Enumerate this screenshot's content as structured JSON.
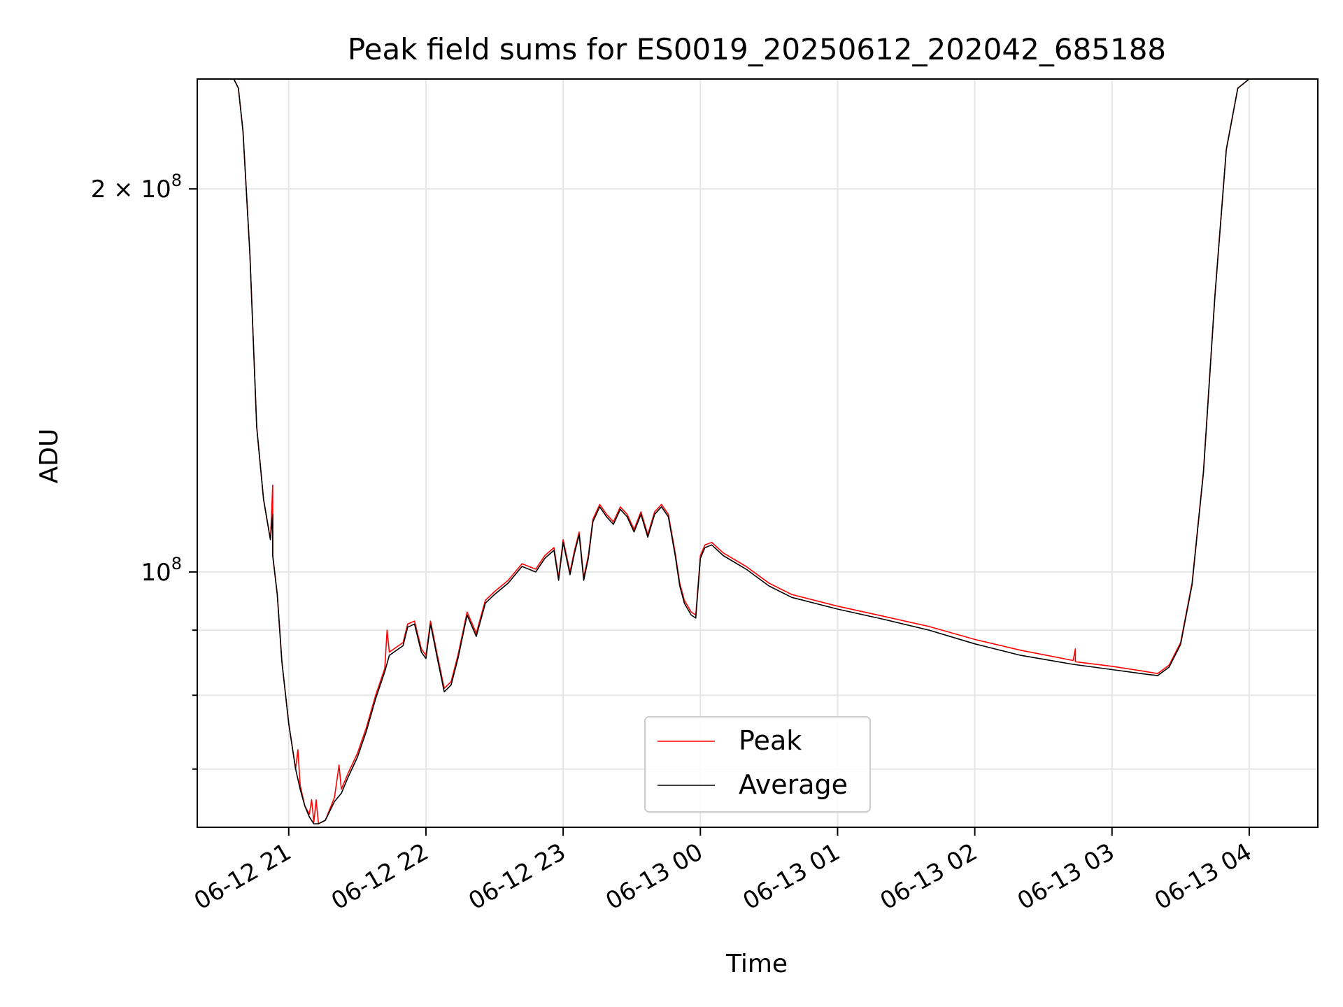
{
  "chart_data": {
    "type": "line",
    "title": "Peak field sums for ES0019_20250612_202042_685188",
    "xlabel": "Time",
    "ylabel": "ADU",
    "yscale": "log",
    "xlim": [
      "2025-06-12 20:20",
      "2025-06-13 04:30"
    ],
    "ylim": [
      63000000,
      244000000
    ],
    "grid": true,
    "legend_position": "lower center",
    "x_ticks": [
      {
        "value": "2025-06-12 21:00",
        "label": "06-12 21"
      },
      {
        "value": "2025-06-12 22:00",
        "label": "06-12 22"
      },
      {
        "value": "2025-06-12 23:00",
        "label": "06-12 23"
      },
      {
        "value": "2025-06-13 00:00",
        "label": "06-13 00"
      },
      {
        "value": "2025-06-13 01:00",
        "label": "06-13 01"
      },
      {
        "value": "2025-06-13 02:00",
        "label": "06-13 02"
      },
      {
        "value": "2025-06-13 03:00",
        "label": "06-13 03"
      },
      {
        "value": "2025-06-13 04:00",
        "label": "06-13 04"
      }
    ],
    "y_ticks_major": [
      {
        "value": 100000000,
        "base": "10",
        "exp": "8",
        "mult": ""
      },
      {
        "value": 200000000,
        "base": "10",
        "exp": "8",
        "mult": "2 × "
      }
    ],
    "y_ticks_minor": [
      70000000,
      80000000,
      90000000
    ],
    "series": [
      {
        "name": "Peak",
        "color": "#ff0000",
        "points": [
          [
            "2025-06-12 20:36",
            244000000
          ],
          [
            "2025-06-12 20:38",
            240000000
          ],
          [
            "2025-06-12 20:40",
            222000000
          ],
          [
            "2025-06-12 20:43",
            178000000
          ],
          [
            "2025-06-12 20:46",
            130000000
          ],
          [
            "2025-06-12 20:49",
            114000000
          ],
          [
            "2025-06-12 20:52",
            106000000
          ],
          [
            "2025-06-12 20:53",
            117000000
          ],
          [
            "2025-06-12 20:53",
            103000000
          ],
          [
            "2025-06-12 20:55",
            96000000
          ],
          [
            "2025-06-12 20:57",
            85000000
          ],
          [
            "2025-06-12 21:00",
            76000000
          ],
          [
            "2025-06-12 21:03",
            70000000
          ],
          [
            "2025-06-12 21:04",
            72500000
          ],
          [
            "2025-06-12 21:05",
            68000000
          ],
          [
            "2025-06-12 21:07",
            65500000
          ],
          [
            "2025-06-12 21:09",
            64500000
          ],
          [
            "2025-06-12 21:10",
            66200000
          ],
          [
            "2025-06-12 21:11",
            63600000
          ],
          [
            "2025-06-12 21:12",
            66200000
          ],
          [
            "2025-06-12 21:13",
            63400000
          ],
          [
            "2025-06-12 21:16",
            63800000
          ],
          [
            "2025-06-12 21:20",
            66500000
          ],
          [
            "2025-06-12 21:22",
            70500000
          ],
          [
            "2025-06-12 21:23",
            67500000
          ],
          [
            "2025-06-12 21:26",
            69500000
          ],
          [
            "2025-06-12 21:30",
            72000000
          ],
          [
            "2025-06-12 21:34",
            75500000
          ],
          [
            "2025-06-12 21:38",
            80000000
          ],
          [
            "2025-06-12 21:42",
            84000000
          ],
          [
            "2025-06-12 21:43",
            90000000
          ],
          [
            "2025-06-12 21:44",
            86500000
          ],
          [
            "2025-06-12 21:50",
            88000000
          ],
          [
            "2025-06-12 21:52",
            91000000
          ],
          [
            "2025-06-12 21:55",
            91500000
          ],
          [
            "2025-06-12 21:58",
            87000000
          ],
          [
            "2025-06-12 22:00",
            86000000
          ],
          [
            "2025-06-12 22:02",
            91500000
          ],
          [
            "2025-06-12 22:05",
            86000000
          ],
          [
            "2025-06-12 22:08",
            81000000
          ],
          [
            "2025-06-12 22:11",
            82000000
          ],
          [
            "2025-06-12 22:14",
            86000000
          ],
          [
            "2025-06-12 22:18",
            93000000
          ],
          [
            "2025-06-12 22:22",
            89500000
          ],
          [
            "2025-06-12 22:26",
            95000000
          ],
          [
            "2025-06-12 22:30",
            96500000
          ],
          [
            "2025-06-12 22:36",
            98500000
          ],
          [
            "2025-06-12 22:42",
            101500000
          ],
          [
            "2025-06-12 22:48",
            100500000
          ],
          [
            "2025-06-12 22:52",
            103000000
          ],
          [
            "2025-06-12 22:56",
            104500000
          ],
          [
            "2025-06-12 22:58",
            99000000
          ],
          [
            "2025-06-12 23:00",
            106000000
          ],
          [
            "2025-06-12 23:03",
            100000000
          ],
          [
            "2025-06-12 23:05",
            104000000
          ],
          [
            "2025-06-12 23:07",
            107500000
          ],
          [
            "2025-06-12 23:09",
            99000000
          ],
          [
            "2025-06-12 23:11",
            103000000
          ],
          [
            "2025-06-12 23:13",
            110000000
          ],
          [
            "2025-06-12 23:16",
            113000000
          ],
          [
            "2025-06-12 23:19",
            111000000
          ],
          [
            "2025-06-12 23:22",
            109500000
          ],
          [
            "2025-06-12 23:25",
            112500000
          ],
          [
            "2025-06-12 23:28",
            111000000
          ],
          [
            "2025-06-12 23:31",
            108000000
          ],
          [
            "2025-06-12 23:34",
            111500000
          ],
          [
            "2025-06-12 23:37",
            107000000
          ],
          [
            "2025-06-12 23:40",
            111500000
          ],
          [
            "2025-06-12 23:43",
            113000000
          ],
          [
            "2025-06-12 23:46",
            111000000
          ],
          [
            "2025-06-12 23:49",
            103500000
          ],
          [
            "2025-06-12 23:51",
            98000000
          ],
          [
            "2025-06-12 23:53",
            95000000
          ],
          [
            "2025-06-12 23:56",
            93000000
          ],
          [
            "2025-06-12 23:58",
            92500000
          ],
          [
            "2025-06-13 00:00",
            103000000
          ],
          [
            "2025-06-13 00:02",
            105000000
          ],
          [
            "2025-06-13 00:05",
            105500000
          ],
          [
            "2025-06-13 00:10",
            103500000
          ],
          [
            "2025-06-13 00:20",
            101000000
          ],
          [
            "2025-06-13 00:30",
            98000000
          ],
          [
            "2025-06-13 00:40",
            96000000
          ],
          [
            "2025-06-13 01:00",
            94000000
          ],
          [
            "2025-06-13 01:20",
            92300000
          ],
          [
            "2025-06-13 01:40",
            90600000
          ],
          [
            "2025-06-13 02:00",
            88500000
          ],
          [
            "2025-06-13 02:20",
            86800000
          ],
          [
            "2025-06-13 02:43",
            85200000
          ],
          [
            "2025-06-13 02:44",
            87000000
          ],
          [
            "2025-06-13 02:44",
            85000000
          ],
          [
            "2025-06-13 03:00",
            84300000
          ],
          [
            "2025-06-13 03:15",
            83500000
          ],
          [
            "2025-06-13 03:20",
            83200000
          ],
          [
            "2025-06-13 03:25",
            84500000
          ],
          [
            "2025-06-13 03:30",
            88000000
          ],
          [
            "2025-06-13 03:35",
            98000000
          ],
          [
            "2025-06-13 03:40",
            120000000
          ],
          [
            "2025-06-13 03:45",
            165000000
          ],
          [
            "2025-06-13 03:50",
            215000000
          ],
          [
            "2025-06-13 03:55",
            240000000
          ],
          [
            "2025-06-13 04:00",
            244000000
          ]
        ]
      },
      {
        "name": "Average",
        "color": "#000000",
        "points": [
          [
            "2025-06-12 20:36",
            244000000
          ],
          [
            "2025-06-12 20:38",
            240000000
          ],
          [
            "2025-06-12 20:40",
            222000000
          ],
          [
            "2025-06-12 20:43",
            178000000
          ],
          [
            "2025-06-12 20:46",
            130000000
          ],
          [
            "2025-06-12 20:49",
            114000000
          ],
          [
            "2025-06-12 20:52",
            106000000
          ],
          [
            "2025-06-12 20:53",
            111000000
          ],
          [
            "2025-06-12 20:53",
            103000000
          ],
          [
            "2025-06-12 20:55",
            96000000
          ],
          [
            "2025-06-12 20:57",
            85000000
          ],
          [
            "2025-06-12 21:00",
            76000000
          ],
          [
            "2025-06-12 21:03",
            70000000
          ],
          [
            "2025-06-12 21:05",
            67500000
          ],
          [
            "2025-06-12 21:07",
            65500000
          ],
          [
            "2025-06-12 21:09",
            64200000
          ],
          [
            "2025-06-12 21:11",
            63400000
          ],
          [
            "2025-06-12 21:13",
            63400000
          ],
          [
            "2025-06-12 21:16",
            63800000
          ],
          [
            "2025-06-12 21:20",
            66000000
          ],
          [
            "2025-06-12 21:23",
            67000000
          ],
          [
            "2025-06-12 21:26",
            69000000
          ],
          [
            "2025-06-12 21:30",
            71500000
          ],
          [
            "2025-06-12 21:34",
            75000000
          ],
          [
            "2025-06-12 21:38",
            79500000
          ],
          [
            "2025-06-12 21:42",
            83500000
          ],
          [
            "2025-06-12 21:44",
            86000000
          ],
          [
            "2025-06-12 21:50",
            87500000
          ],
          [
            "2025-06-12 21:52",
            90500000
          ],
          [
            "2025-06-12 21:55",
            91000000
          ],
          [
            "2025-06-12 21:58",
            86500000
          ],
          [
            "2025-06-12 22:00",
            85500000
          ],
          [
            "2025-06-12 22:02",
            91000000
          ],
          [
            "2025-06-12 22:05",
            85500000
          ],
          [
            "2025-06-12 22:08",
            80500000
          ],
          [
            "2025-06-12 22:11",
            81500000
          ],
          [
            "2025-06-12 22:14",
            85500000
          ],
          [
            "2025-06-12 22:18",
            92500000
          ],
          [
            "2025-06-12 22:22",
            89000000
          ],
          [
            "2025-06-12 22:26",
            94500000
          ],
          [
            "2025-06-12 22:30",
            96000000
          ],
          [
            "2025-06-12 22:36",
            98000000
          ],
          [
            "2025-06-12 22:42",
            101000000
          ],
          [
            "2025-06-12 22:48",
            100000000
          ],
          [
            "2025-06-12 22:52",
            102500000
          ],
          [
            "2025-06-12 22:56",
            104000000
          ],
          [
            "2025-06-12 22:58",
            98500000
          ],
          [
            "2025-06-12 23:00",
            105500000
          ],
          [
            "2025-06-12 23:03",
            99500000
          ],
          [
            "2025-06-12 23:05",
            103500000
          ],
          [
            "2025-06-12 23:07",
            107000000
          ],
          [
            "2025-06-12 23:09",
            98500000
          ],
          [
            "2025-06-12 23:11",
            102500000
          ],
          [
            "2025-06-12 23:13",
            109500000
          ],
          [
            "2025-06-12 23:16",
            112500000
          ],
          [
            "2025-06-12 23:19",
            110500000
          ],
          [
            "2025-06-12 23:22",
            109000000
          ],
          [
            "2025-06-12 23:25",
            112000000
          ],
          [
            "2025-06-12 23:28",
            110500000
          ],
          [
            "2025-06-12 23:31",
            107500000
          ],
          [
            "2025-06-12 23:34",
            111000000
          ],
          [
            "2025-06-12 23:37",
            106500000
          ],
          [
            "2025-06-12 23:40",
            111000000
          ],
          [
            "2025-06-12 23:43",
            112500000
          ],
          [
            "2025-06-12 23:46",
            110500000
          ],
          [
            "2025-06-12 23:49",
            103000000
          ],
          [
            "2025-06-12 23:51",
            97500000
          ],
          [
            "2025-06-12 23:53",
            94500000
          ],
          [
            "2025-06-12 23:56",
            92500000
          ],
          [
            "2025-06-12 23:58",
            92000000
          ],
          [
            "2025-06-13 00:00",
            102500000
          ],
          [
            "2025-06-13 00:02",
            104500000
          ],
          [
            "2025-06-13 00:05",
            105000000
          ],
          [
            "2025-06-13 00:10",
            103000000
          ],
          [
            "2025-06-13 00:20",
            100500000
          ],
          [
            "2025-06-13 00:30",
            97500000
          ],
          [
            "2025-06-13 00:40",
            95500000
          ],
          [
            "2025-06-13 01:00",
            93500000
          ],
          [
            "2025-06-13 01:20",
            91800000
          ],
          [
            "2025-06-13 01:40",
            90000000
          ],
          [
            "2025-06-13 02:00",
            87800000
          ],
          [
            "2025-06-13 02:20",
            86000000
          ],
          [
            "2025-06-13 02:43",
            84600000
          ],
          [
            "2025-06-13 03:00",
            83800000
          ],
          [
            "2025-06-13 03:15",
            83100000
          ],
          [
            "2025-06-13 03:20",
            82900000
          ],
          [
            "2025-06-13 03:25",
            84200000
          ],
          [
            "2025-06-13 03:30",
            87700000
          ],
          [
            "2025-06-13 03:35",
            97700000
          ],
          [
            "2025-06-13 03:40",
            119700000
          ],
          [
            "2025-06-13 03:45",
            164700000
          ],
          [
            "2025-06-13 03:50",
            214700000
          ],
          [
            "2025-06-13 03:55",
            240000000
          ],
          [
            "2025-06-13 04:00",
            244000000
          ]
        ]
      }
    ]
  }
}
